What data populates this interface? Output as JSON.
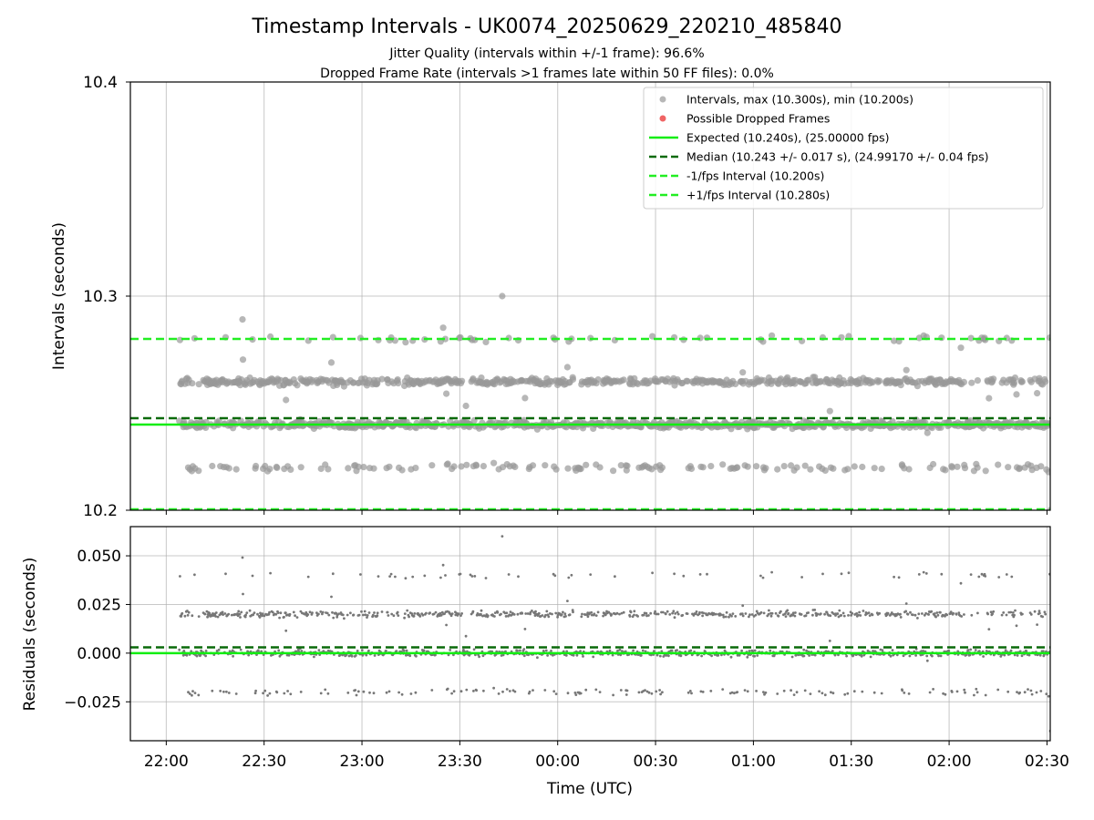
{
  "figure": {
    "title": "Timestamp Intervals - UK0074_20250629_220210_485840",
    "subtitle_1": "Jitter Quality (intervals within +/-1 frame): 96.6%",
    "subtitle_2": "Dropped Frame Rate (intervals >1 frames late within 50 FF files): 0.0%"
  },
  "colors": {
    "intervals": "#999999",
    "residuals": "#777777",
    "dropped": "#f06464",
    "expected": "#11ee11",
    "median": "#0a6a0a",
    "bounds": "#22ee22",
    "grid": "#b0b0b0"
  },
  "chart_data": [
    {
      "type": "scatter",
      "name": "intervals-panel",
      "ylabel": "Intervals (seconds)",
      "ylim": [
        10.2,
        10.4
      ],
      "yticks": [
        "10.2",
        "10.3",
        "10.4"
      ],
      "ytick_values": [
        10.2,
        10.3,
        10.4
      ],
      "xlim_utc": [
        "21:49",
        "02:31"
      ],
      "grid": true,
      "legend_position": "top-right",
      "series": [
        {
          "name": "Intervals, max (10.300s), min (10.200s)",
          "kind": "points",
          "pattern": "interval values clustered around 10.240 s and 10.260 s, with fewer near 10.220 s and 10.280 s; from about 22:04 to 02:31 UTC",
          "levels": [
            10.22,
            10.24,
            10.26,
            10.28
          ],
          "max": 10.3,
          "min": 10.2
        },
        {
          "name": "Possible Dropped Frames",
          "kind": "points",
          "values": []
        },
        {
          "name": "Expected (10.240s), (25.00000 fps)",
          "kind": "hline",
          "y": 10.24
        },
        {
          "name": "Median (10.243 +/- 0.017 s), (24.99170 +/- 0.04 fps)",
          "kind": "hline-dashed",
          "y": 10.243
        },
        {
          "name": "-1/fps Interval (10.200s)",
          "kind": "hline-dashed",
          "y": 10.2
        },
        {
          "name": "+1/fps Interval (10.280s)",
          "kind": "hline-dashed",
          "y": 10.28
        }
      ]
    },
    {
      "type": "scatter",
      "name": "residuals-panel",
      "ylabel": "Residuals (seconds)",
      "xlabel": "Time (UTC)",
      "ylim": [
        -0.045,
        0.065
      ],
      "yticks": [
        "−0.025",
        "0.000",
        "0.025",
        "0.050"
      ],
      "ytick_values": [
        -0.025,
        0.0,
        0.025,
        0.05
      ],
      "xticks": [
        "22:00",
        "22:30",
        "23:00",
        "23:30",
        "00:00",
        "00:30",
        "01:00",
        "01:30",
        "02:00",
        "02:30"
      ],
      "xlim_utc": [
        "21:49",
        "02:31"
      ],
      "grid": true,
      "series": [
        {
          "name": "residuals",
          "kind": "points",
          "pattern": "interval minus expected; residual levels near 0.000, 0.020, -0.020 and 0.040 s",
          "levels": [
            -0.02,
            0.0,
            0.02,
            0.04
          ]
        },
        {
          "name": "zero",
          "kind": "hline",
          "y": 0.0
        },
        {
          "name": "median residual",
          "kind": "hline-dashed",
          "y": 0.003
        }
      ]
    }
  ]
}
